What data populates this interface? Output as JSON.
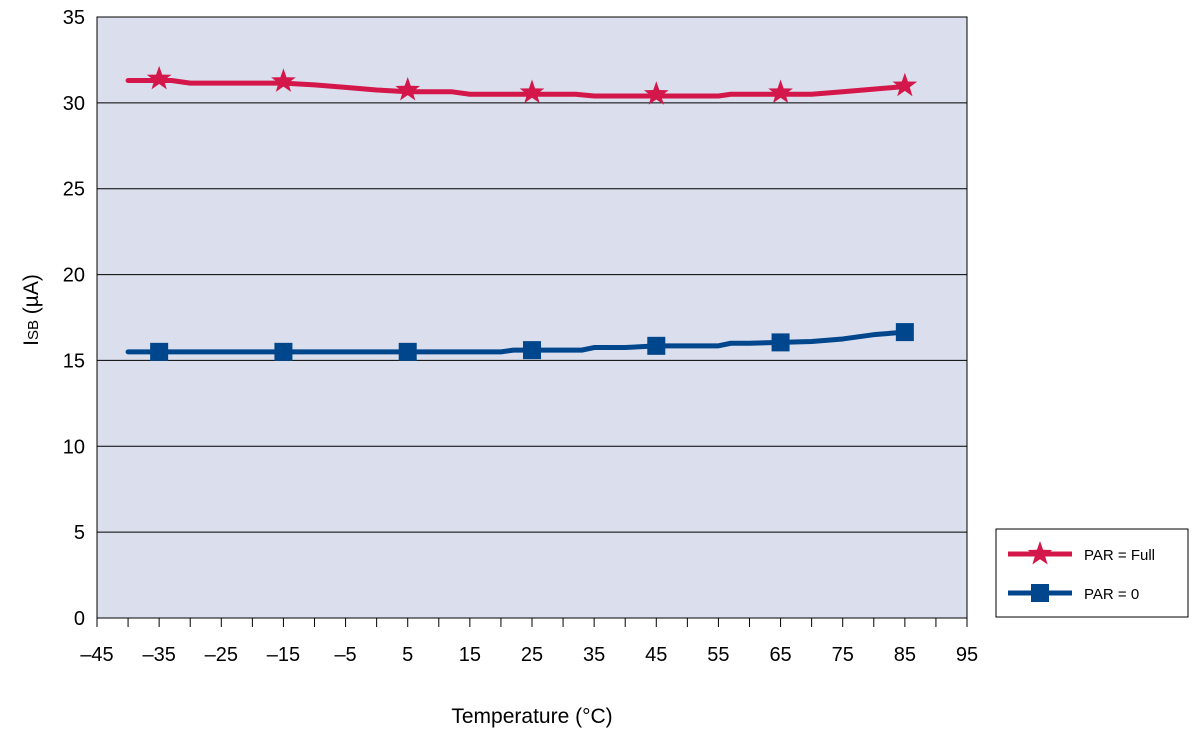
{
  "chart_data": {
    "type": "line",
    "title": "",
    "xlabel": "Temperature (°C)",
    "ylabel_main": "I",
    "ylabel_sub": "SB",
    "ylabel_unit": " (µA)",
    "xlim": [
      -45,
      95
    ],
    "ylim": [
      0,
      35
    ],
    "xticks": [
      -45,
      -35,
      -25,
      -15,
      -5,
      5,
      15,
      25,
      35,
      45,
      55,
      65,
      75,
      85,
      95
    ],
    "xtick_labels": [
      "–45",
      "–35",
      "–25",
      "–15",
      "–5",
      "5",
      "15",
      "25",
      "35",
      "45",
      "55",
      "65",
      "75",
      "85",
      "95"
    ],
    "xminor_step": 5,
    "yticks": [
      0,
      5,
      10,
      15,
      20,
      25,
      30,
      35
    ],
    "ytick_labels": [
      "0",
      "5",
      "10",
      "15",
      "20",
      "25",
      "30",
      "35"
    ],
    "grid": "horizontal",
    "plot_background": "#dadeed",
    "legend_position": "right",
    "series": [
      {
        "name": "PAR = Full",
        "color": "#d4174a",
        "marker": "star",
        "line": [
          [
            -40,
            31.3
          ],
          [
            -36,
            31.3
          ],
          [
            -33,
            31.3
          ],
          [
            -30,
            31.15
          ],
          [
            -25,
            31.15
          ],
          [
            -20,
            31.15
          ],
          [
            -15,
            31.15
          ],
          [
            -10,
            31.05
          ],
          [
            -5,
            30.9
          ],
          [
            0,
            30.75
          ],
          [
            5,
            30.65
          ],
          [
            10,
            30.65
          ],
          [
            12,
            30.65
          ],
          [
            15,
            30.5
          ],
          [
            20,
            30.5
          ],
          [
            25,
            30.5
          ],
          [
            30,
            30.5
          ],
          [
            32,
            30.5
          ],
          [
            35,
            30.4
          ],
          [
            40,
            30.4
          ],
          [
            45,
            30.4
          ],
          [
            50,
            30.4
          ],
          [
            55,
            30.4
          ],
          [
            57,
            30.5
          ],
          [
            60,
            30.5
          ],
          [
            65,
            30.5
          ],
          [
            70,
            30.5
          ],
          [
            75,
            30.65
          ],
          [
            80,
            30.8
          ],
          [
            85,
            30.95
          ]
        ],
        "markers": [
          [
            -35,
            31.4
          ],
          [
            -15,
            31.25
          ],
          [
            5,
            30.75
          ],
          [
            25,
            30.6
          ],
          [
            45,
            30.5
          ],
          [
            65,
            30.6
          ],
          [
            85,
            31.0
          ]
        ]
      },
      {
        "name": "PAR = 0",
        "color": "#00468c",
        "marker": "square",
        "line": [
          [
            -40,
            15.5
          ],
          [
            -35,
            15.5
          ],
          [
            -25,
            15.5
          ],
          [
            -15,
            15.5
          ],
          [
            -5,
            15.5
          ],
          [
            5,
            15.5
          ],
          [
            15,
            15.5
          ],
          [
            20,
            15.5
          ],
          [
            22,
            15.6
          ],
          [
            25,
            15.6
          ],
          [
            30,
            15.6
          ],
          [
            33,
            15.6
          ],
          [
            35,
            15.75
          ],
          [
            40,
            15.75
          ],
          [
            45,
            15.85
          ],
          [
            50,
            15.85
          ],
          [
            55,
            15.85
          ],
          [
            57,
            16.0
          ],
          [
            60,
            16.0
          ],
          [
            65,
            16.05
          ],
          [
            70,
            16.1
          ],
          [
            75,
            16.25
          ],
          [
            80,
            16.5
          ],
          [
            85,
            16.65
          ]
        ],
        "markers": [
          [
            -35,
            15.5
          ],
          [
            -15,
            15.5
          ],
          [
            5,
            15.5
          ],
          [
            25,
            15.6
          ],
          [
            45,
            15.85
          ],
          [
            65,
            16.05
          ],
          [
            85,
            16.65
          ]
        ]
      }
    ]
  }
}
